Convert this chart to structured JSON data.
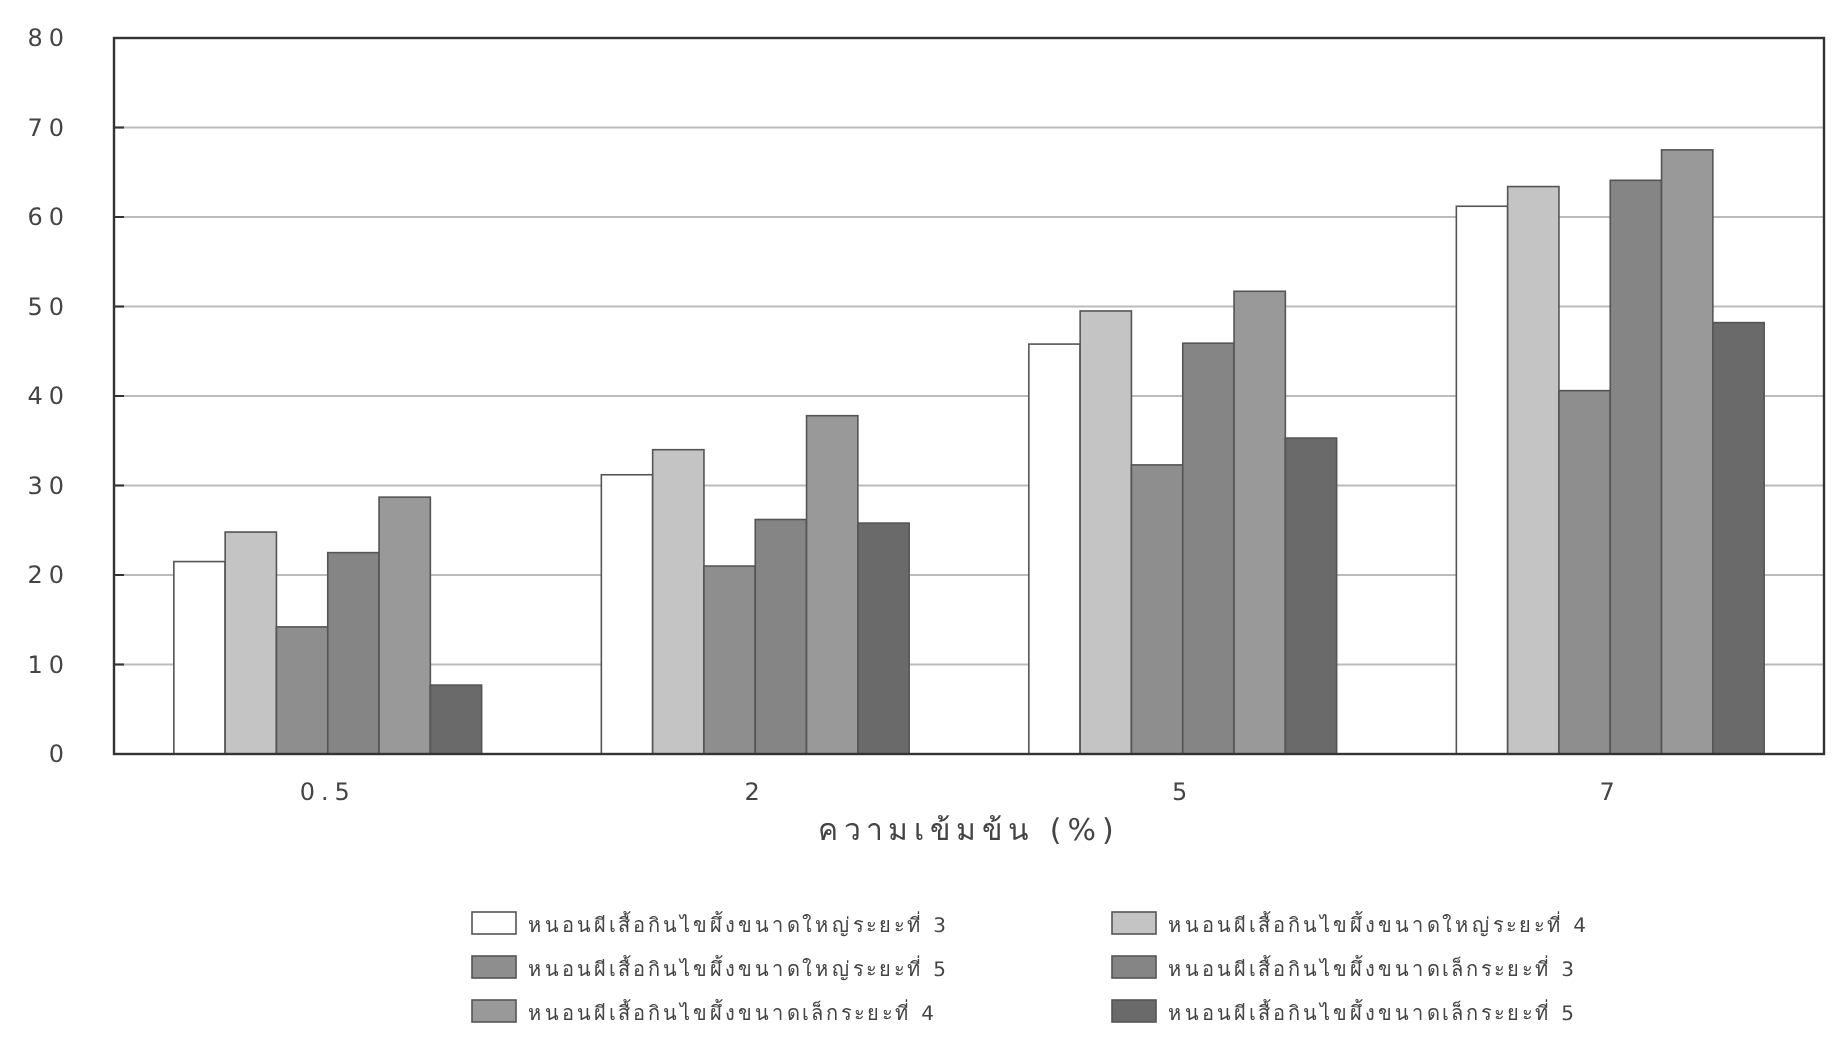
{
  "chart_data": {
    "type": "bar",
    "xlabel": "ความเข้มข้น (%)",
    "categories": [
      "0.5",
      "2",
      "5",
      "7"
    ],
    "series": [
      {
        "name": "หนอนผีเสื้อกินไขผึ้งขนาดใหญ่ระยะที่ 3",
        "color": "#ffffff",
        "values": [
          21.5,
          31.2,
          45.8,
          61.2
        ]
      },
      {
        "name": "หนอนผีเสื้อกินไขผึ้งขนาดใหญ่ระยะที่ 4",
        "color": "#c4c4c4",
        "values": [
          24.8,
          34,
          49.5,
          63.4
        ]
      },
      {
        "name": "หนอนผีเสื้อกินไขผึ้งขนาดใหญ่ระยะที่ 5",
        "color": "#8e8e8e",
        "values": [
          14.2,
          21,
          32.3,
          40.6
        ]
      },
      {
        "name": "หนอนผีเสื้อกินไขผึ้งขนาดเล็กระยะที่ 3",
        "color": "#858585",
        "values": [
          22.5,
          26.2,
          45.9,
          64.1
        ]
      },
      {
        "name": "หนอนผีเสื้อกินไขผึ้งขนาดเล็กระยะที่ 4",
        "color": "#999999",
        "values": [
          28.7,
          37.8,
          51.7,
          67.5
        ]
      },
      {
        "name": "หนอนผีเสื้อกินไขผึ้งขนาดเล็กระยะที่ 5",
        "color": "#6a6a6a",
        "values": [
          7.7,
          25.8,
          35.3,
          48.2
        ]
      }
    ],
    "ylim": [
      0,
      80
    ],
    "yticks": [
      0,
      10,
      20,
      30,
      40,
      50,
      60,
      70,
      80
    ],
    "grid": "y",
    "legend": "bottom"
  }
}
